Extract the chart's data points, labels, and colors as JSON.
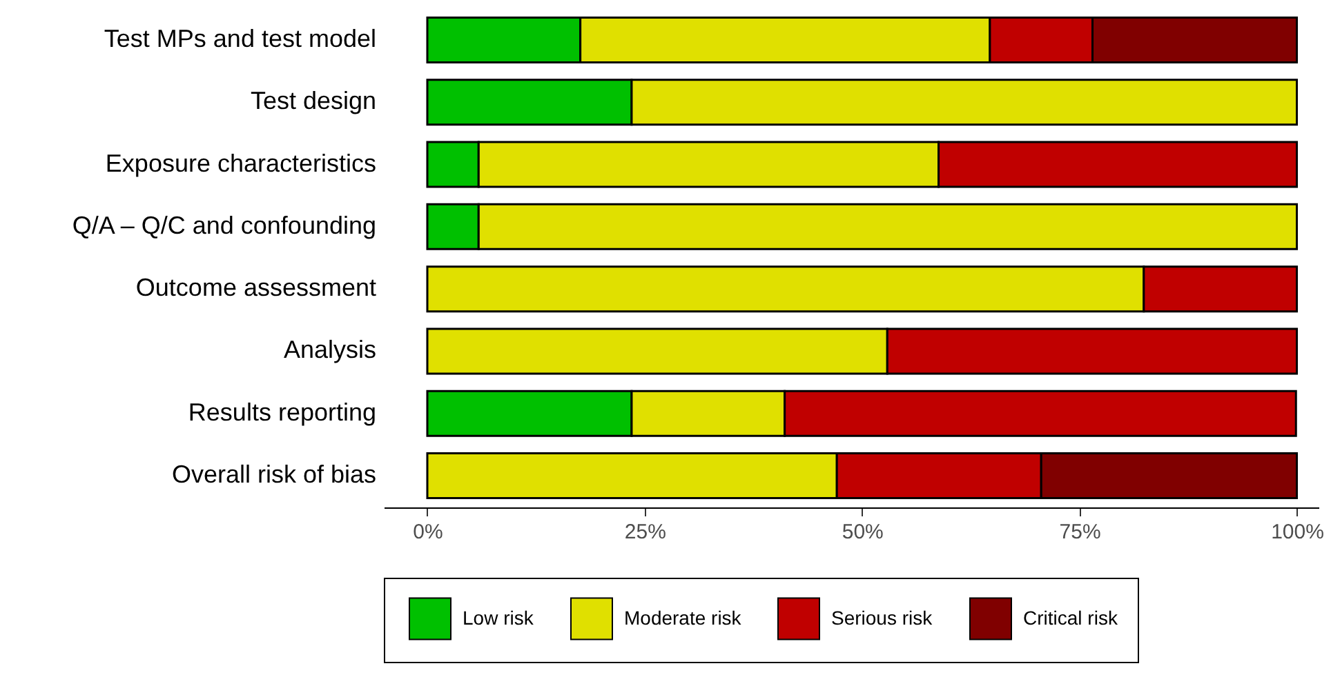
{
  "chart_data": {
    "type": "bar",
    "orientation": "horizontal",
    "stacked": true,
    "categories": [
      "Test MPs and test model",
      "Test design",
      "Exposure characteristics",
      "Q/A – Q/C and confounding",
      "Outcome assessment",
      "Analysis",
      "Results reporting",
      "Overall risk of bias"
    ],
    "series": [
      {
        "name": "Low risk",
        "color": "#00c000",
        "values": [
          17.6,
          23.5,
          5.9,
          5.9,
          0,
          0,
          23.5,
          0
        ]
      },
      {
        "name": "Moderate risk",
        "color": "#e0e000",
        "values": [
          47.1,
          76.5,
          52.9,
          94.1,
          82.4,
          52.9,
          17.6,
          47.1
        ]
      },
      {
        "name": "Serious risk",
        "color": "#c00000",
        "values": [
          11.8,
          0,
          41.2,
          0,
          17.6,
          47.1,
          58.8,
          23.5
        ]
      },
      {
        "name": "Critical risk",
        "color": "#800000",
        "values": [
          23.5,
          0,
          0,
          0,
          0,
          0,
          0,
          29.4
        ]
      }
    ],
    "xlim": [
      -5,
      102.5
    ],
    "xticks": [
      {
        "value": 0,
        "label": "0%"
      },
      {
        "value": 25,
        "label": "25%"
      },
      {
        "value": 50,
        "label": "50%"
      },
      {
        "value": 75,
        "label": "75%"
      },
      {
        "value": 100,
        "label": "100%"
      }
    ],
    "grid": false,
    "legend": "bottom"
  }
}
